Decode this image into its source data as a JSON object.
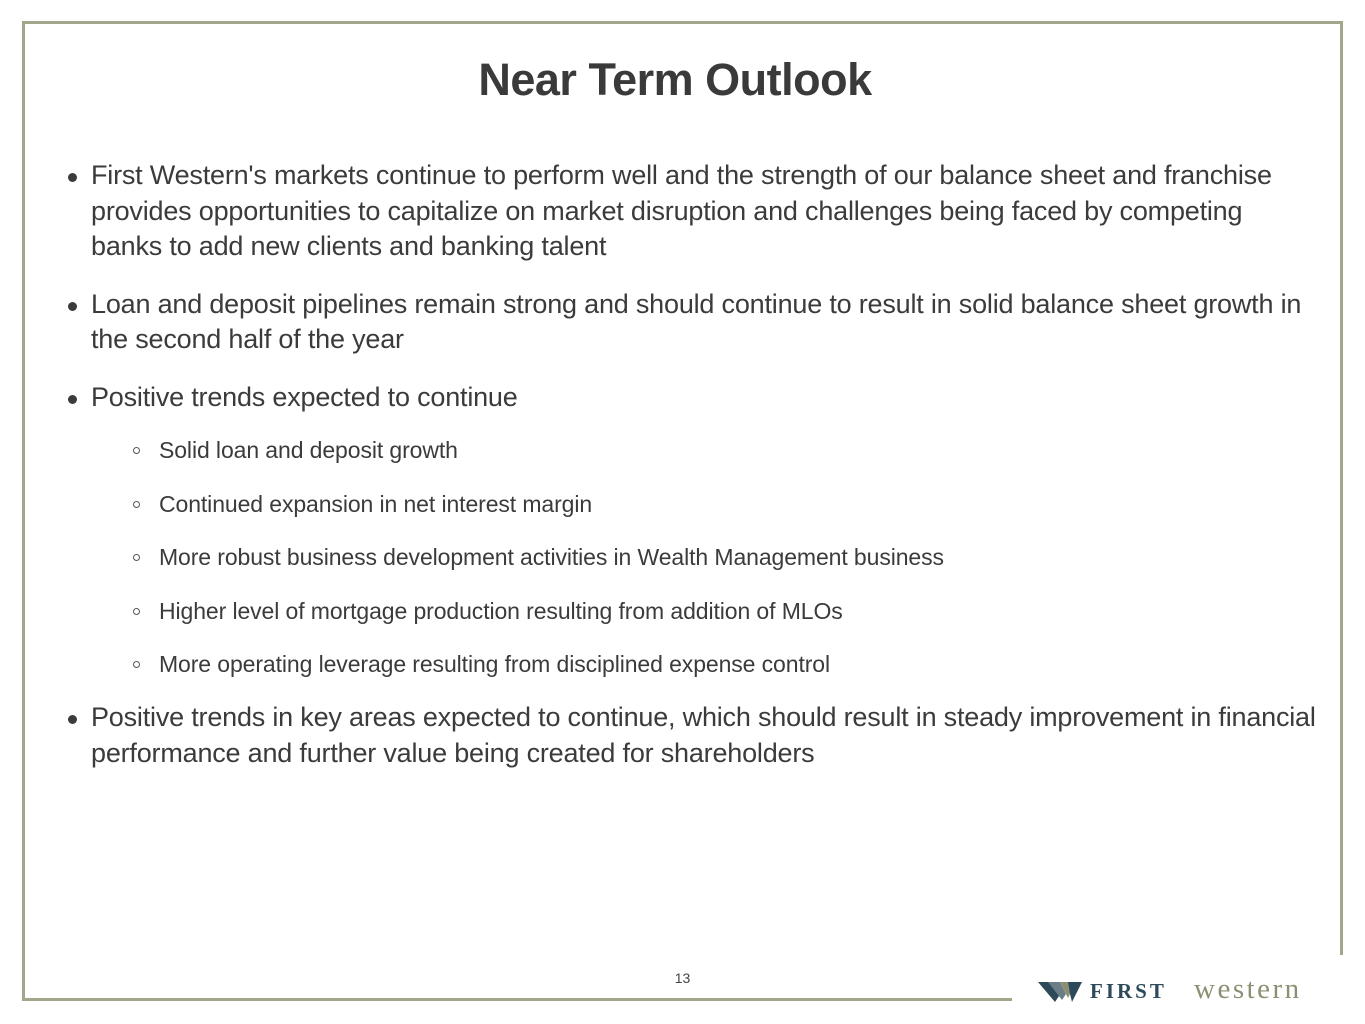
{
  "title": "Near Term Outlook",
  "bullets": [
    {
      "text": "First Western's markets continue to perform well and the strength of our balance sheet and franchise provides opportunities to capitalize on market disruption and challenges being faced by competing banks to add new clients and banking talent"
    },
    {
      "text": "Loan and deposit pipelines remain strong and should continue to result in solid balance sheet growth in the second half of the year"
    },
    {
      "text": "Positive trends expected to continue",
      "sub_items": [
        "Solid loan and deposit growth",
        "Continued expansion in net interest margin",
        "More robust business development activities in Wealth Management business",
        "Higher level of mortgage production resulting from addition of MLOs",
        "More operating leverage resulting from disciplined expense control"
      ]
    },
    {
      "text": "Positive trends in key areas expected to continue, which should result in steady improvement in financial performance and further value being created for shareholders"
    }
  ],
  "page_number": "13",
  "logo": {
    "first": "FIRST",
    "western": "western",
    "mark_icon": "first-western-w-mark-icon"
  },
  "colors": {
    "frame": "#a3a68a",
    "text": "#3b3b3b",
    "logo_dark": "#2d4a5a",
    "logo_olive": "#8d8f72"
  }
}
